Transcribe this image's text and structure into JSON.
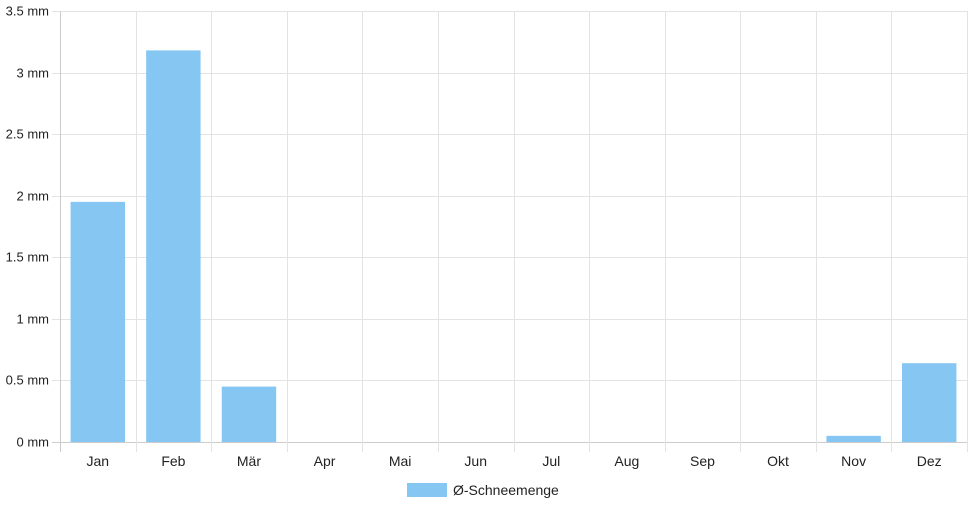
{
  "chart_data": {
    "type": "bar",
    "categories": [
      "Jan",
      "Feb",
      "Mär",
      "Apr",
      "Mai",
      "Jun",
      "Jul",
      "Aug",
      "Sep",
      "Okt",
      "Nov",
      "Dez"
    ],
    "series": [
      {
        "name": "Ø-Schneemenge",
        "values": [
          1.95,
          3.18,
          0.45,
          0,
          0,
          0,
          0,
          0,
          0,
          0,
          0.05,
          0.64
        ],
        "color": "#86c6f2"
      }
    ],
    "yticks": [
      "0 mm",
      "0.5 mm",
      "1 mm",
      "1.5 mm",
      "2 mm",
      "2.5 mm",
      "3 mm",
      "3.5 mm"
    ],
    "ylim": [
      0,
      3.5
    ],
    "unit": "mm",
    "grid": true,
    "legend": "bottom-center",
    "colors": {
      "grid": "#e3e3e3",
      "axis": "#cccccc",
      "text": "#222222"
    }
  }
}
